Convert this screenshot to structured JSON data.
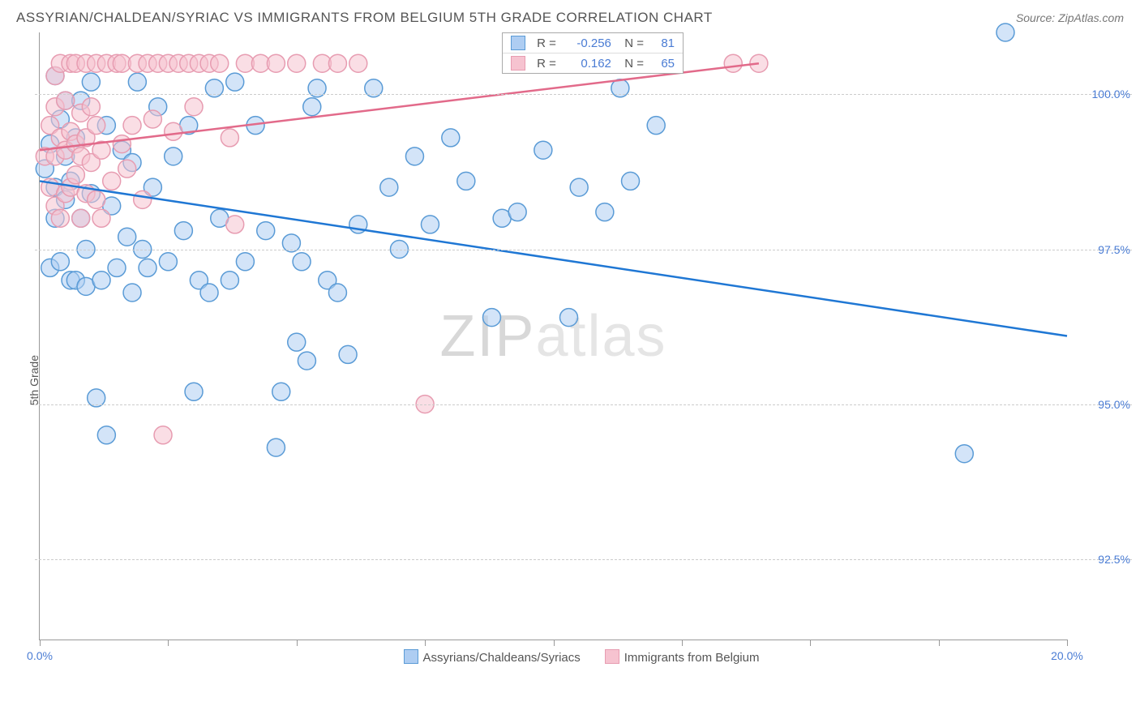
{
  "header": {
    "title": "ASSYRIAN/CHALDEAN/SYRIAC VS IMMIGRANTS FROM BELGIUM 5TH GRADE CORRELATION CHART",
    "source_prefix": "Source: ",
    "source": "ZipAtlas.com"
  },
  "ylabel": "5th Grade",
  "watermark": {
    "a": "ZIP",
    "b": "atlas"
  },
  "chart": {
    "type": "scatter",
    "xlim": [
      0,
      20
    ],
    "ylim": [
      91.2,
      101.0
    ],
    "xticks": [
      0,
      2.5,
      5,
      7.5,
      10,
      12.5,
      15,
      17.5,
      20
    ],
    "xtick_labels": {
      "0": "0.0%",
      "20": "20.0%"
    },
    "yticks": [
      92.5,
      95.0,
      97.5,
      100.0
    ],
    "ytick_labels": [
      "92.5%",
      "95.0%",
      "97.5%",
      "100.0%"
    ],
    "grid_color": "#cccccc",
    "background_color": "#ffffff",
    "marker_radius": 11,
    "marker_opacity": 0.55,
    "line_width": 2.5,
    "series": [
      {
        "name": "Assyrians/Chaldeans/Syriacs",
        "color": "#1f77d4",
        "fill": "#aecdf2",
        "stroke": "#5a9bd6",
        "R": "-0.256",
        "N": "81",
        "line": {
          "x1": 0,
          "y1": 98.6,
          "x2": 20,
          "y2": 96.1
        },
        "points": [
          [
            0.1,
            98.8
          ],
          [
            0.2,
            97.2
          ],
          [
            0.2,
            99.2
          ],
          [
            0.3,
            98.0
          ],
          [
            0.3,
            98.5
          ],
          [
            0.3,
            100.3
          ],
          [
            0.4,
            97.3
          ],
          [
            0.4,
            99.6
          ],
          [
            0.5,
            98.3
          ],
          [
            0.5,
            99.0
          ],
          [
            0.5,
            99.9
          ],
          [
            0.6,
            97.0
          ],
          [
            0.6,
            98.6
          ],
          [
            0.7,
            97.0
          ],
          [
            0.7,
            99.3
          ],
          [
            0.8,
            98.0
          ],
          [
            0.8,
            99.9
          ],
          [
            0.9,
            96.9
          ],
          [
            0.9,
            97.5
          ],
          [
            1.0,
            98.4
          ],
          [
            1.0,
            100.2
          ],
          [
            1.1,
            95.1
          ],
          [
            1.2,
            97.0
          ],
          [
            1.3,
            99.5
          ],
          [
            1.3,
            94.5
          ],
          [
            1.4,
            98.2
          ],
          [
            1.5,
            97.2
          ],
          [
            1.6,
            99.1
          ],
          [
            1.7,
            97.7
          ],
          [
            1.8,
            96.8
          ],
          [
            1.8,
            98.9
          ],
          [
            1.9,
            100.2
          ],
          [
            2.0,
            97.5
          ],
          [
            2.1,
            97.2
          ],
          [
            2.2,
            98.5
          ],
          [
            2.3,
            99.8
          ],
          [
            2.5,
            97.3
          ],
          [
            2.6,
            99.0
          ],
          [
            2.8,
            97.8
          ],
          [
            2.9,
            99.5
          ],
          [
            3.0,
            95.2
          ],
          [
            3.1,
            97.0
          ],
          [
            3.3,
            96.8
          ],
          [
            3.4,
            100.1
          ],
          [
            3.5,
            98.0
          ],
          [
            3.7,
            97.0
          ],
          [
            3.8,
            100.2
          ],
          [
            4.0,
            97.3
          ],
          [
            4.2,
            99.5
          ],
          [
            4.4,
            97.8
          ],
          [
            4.6,
            94.3
          ],
          [
            4.7,
            95.2
          ],
          [
            4.9,
            97.6
          ],
          [
            5.0,
            96.0
          ],
          [
            5.1,
            97.3
          ],
          [
            5.2,
            95.7
          ],
          [
            5.3,
            99.8
          ],
          [
            5.4,
            100.1
          ],
          [
            5.6,
            97.0
          ],
          [
            5.8,
            96.8
          ],
          [
            6.0,
            95.8
          ],
          [
            6.2,
            97.9
          ],
          [
            6.5,
            100.1
          ],
          [
            6.8,
            98.5
          ],
          [
            7.0,
            97.5
          ],
          [
            7.3,
            99.0
          ],
          [
            7.6,
            97.9
          ],
          [
            8.0,
            99.3
          ],
          [
            8.3,
            98.6
          ],
          [
            8.8,
            96.4
          ],
          [
            9.0,
            98.0
          ],
          [
            9.3,
            98.1
          ],
          [
            9.8,
            99.1
          ],
          [
            10.3,
            96.4
          ],
          [
            10.5,
            98.5
          ],
          [
            11.0,
            98.1
          ],
          [
            11.3,
            100.1
          ],
          [
            11.5,
            98.6
          ],
          [
            12.0,
            99.5
          ],
          [
            18.0,
            94.2
          ],
          [
            18.8,
            101.0
          ]
        ]
      },
      {
        "name": "Immigrants from Belgium",
        "color": "#e26a8a",
        "fill": "#f6c3d0",
        "stroke": "#e79cb1",
        "R": "0.162",
        "N": "65",
        "line": {
          "x1": 0,
          "y1": 99.1,
          "x2": 14,
          "y2": 100.5
        },
        "points": [
          [
            0.1,
            99.0
          ],
          [
            0.2,
            98.5
          ],
          [
            0.2,
            99.5
          ],
          [
            0.3,
            98.2
          ],
          [
            0.3,
            99.0
          ],
          [
            0.3,
            99.8
          ],
          [
            0.3,
            100.3
          ],
          [
            0.4,
            98.0
          ],
          [
            0.4,
            99.3
          ],
          [
            0.4,
            100.5
          ],
          [
            0.5,
            98.4
          ],
          [
            0.5,
            99.1
          ],
          [
            0.5,
            99.9
          ],
          [
            0.6,
            98.5
          ],
          [
            0.6,
            99.4
          ],
          [
            0.6,
            100.5
          ],
          [
            0.7,
            98.7
          ],
          [
            0.7,
            99.2
          ],
          [
            0.7,
            100.5
          ],
          [
            0.8,
            98.0
          ],
          [
            0.8,
            99.0
          ],
          [
            0.8,
            99.7
          ],
          [
            0.9,
            98.4
          ],
          [
            0.9,
            99.3
          ],
          [
            0.9,
            100.5
          ],
          [
            1.0,
            98.9
          ],
          [
            1.0,
            99.8
          ],
          [
            1.1,
            98.3
          ],
          [
            1.1,
            99.5
          ],
          [
            1.1,
            100.5
          ],
          [
            1.2,
            98.0
          ],
          [
            1.2,
            99.1
          ],
          [
            1.3,
            100.5
          ],
          [
            1.4,
            98.6
          ],
          [
            1.5,
            100.5
          ],
          [
            1.6,
            99.2
          ],
          [
            1.6,
            100.5
          ],
          [
            1.7,
            98.8
          ],
          [
            1.8,
            99.5
          ],
          [
            1.9,
            100.5
          ],
          [
            2.0,
            98.3
          ],
          [
            2.1,
            100.5
          ],
          [
            2.2,
            99.6
          ],
          [
            2.3,
            100.5
          ],
          [
            2.4,
            94.5
          ],
          [
            2.5,
            100.5
          ],
          [
            2.6,
            99.4
          ],
          [
            2.7,
            100.5
          ],
          [
            2.9,
            100.5
          ],
          [
            3.0,
            99.8
          ],
          [
            3.1,
            100.5
          ],
          [
            3.3,
            100.5
          ],
          [
            3.5,
            100.5
          ],
          [
            3.7,
            99.3
          ],
          [
            3.8,
            97.9
          ],
          [
            4.0,
            100.5
          ],
          [
            4.3,
            100.5
          ],
          [
            4.6,
            100.5
          ],
          [
            5.0,
            100.5
          ],
          [
            5.5,
            100.5
          ],
          [
            5.8,
            100.5
          ],
          [
            6.2,
            100.5
          ],
          [
            7.5,
            95.0
          ],
          [
            13.5,
            100.5
          ],
          [
            14.0,
            100.5
          ]
        ]
      }
    ]
  },
  "stats_legend": {
    "left_pct": 45,
    "top_pct": 0
  },
  "bottom_legend": [
    {
      "label": "Assyrians/Chaldeans/Syriacs",
      "fill": "#aecdf2",
      "stroke": "#5a9bd6"
    },
    {
      "label": "Immigrants from Belgium",
      "fill": "#f6c3d0",
      "stroke": "#e79cb1"
    }
  ]
}
